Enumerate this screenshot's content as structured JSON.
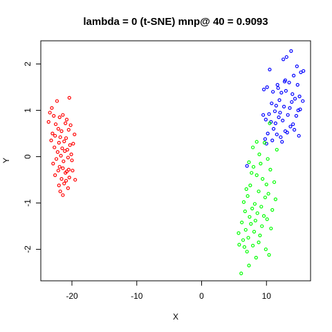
{
  "chart_data": {
    "type": "scatter",
    "title": "lambda = 0 (t-SNE) mnp@ 40 = 0.9093",
    "xlabel": "X",
    "ylabel": "Y",
    "xlim": [
      -24.8,
      16.8
    ],
    "ylim": [
      -2.68,
      2.5
    ],
    "xticks": [
      -20,
      -10,
      0,
      10
    ],
    "yticks": [
      -2,
      -1,
      0,
      1,
      2
    ],
    "xtick_labels": [
      "-20",
      "-10",
      "0",
      "10"
    ],
    "ytick_labels": [
      "-2",
      "-1",
      "0",
      "1",
      "2"
    ],
    "grid": false,
    "series": [
      {
        "color": "#ff0000",
        "x": [
          -23.1,
          -22.3,
          -20.4,
          -23.4,
          -22.8,
          -21.9,
          -21.4,
          -20.8,
          -23.6,
          -22.5,
          -21.0,
          -20.2,
          -22.1,
          -21.6,
          -23.0,
          -20.5,
          -19.6,
          -22.6,
          -21.8,
          -20.9,
          -23.2,
          -22.0,
          -21.2,
          -20.3,
          -19.8,
          -22.7,
          -21.5,
          -20.7,
          -22.2,
          -21.1,
          -20.1,
          -21.7,
          -20.6,
          -22.4,
          -21.3,
          -20.0,
          -22.9,
          -21.9,
          -20.5,
          -21.4,
          -22.1,
          -20.8,
          -19.9,
          -21.0,
          -22.6,
          -20.4,
          -21.6,
          -19.5,
          -20.9,
          -21.2,
          -22.0,
          -20.6,
          -21.8,
          -21.4
        ],
        "y": [
          1.05,
          1.2,
          1.27,
          0.95,
          0.88,
          0.85,
          0.9,
          0.8,
          0.75,
          0.7,
          0.72,
          0.68,
          0.6,
          0.55,
          0.5,
          0.58,
          0.48,
          0.45,
          0.42,
          0.4,
          0.35,
          0.3,
          0.33,
          0.25,
          0.28,
          0.2,
          0.18,
          0.15,
          0.1,
          0.12,
          0.05,
          0.02,
          -0.02,
          -0.05,
          -0.1,
          -0.08,
          -0.15,
          -0.22,
          -0.28,
          -0.25,
          -0.3,
          -0.32,
          -0.3,
          -0.35,
          -0.4,
          -0.45,
          -0.48,
          -0.5,
          -0.52,
          -0.58,
          -0.62,
          -0.68,
          -0.75,
          -0.83
        ]
      },
      {
        "color": "#0000ff",
        "x": [
          13.8,
          13.1,
          12.6,
          14.7,
          10.5,
          15.3,
          15.7,
          14.2,
          12.9,
          13.5,
          11.7,
          10.1,
          9.6,
          11.0,
          12.3,
          13.0,
          14.0,
          15.1,
          14.4,
          15.6,
          12.0,
          10.8,
          11.5,
          12.7,
          13.6,
          14.9,
          15.2,
          11.3,
          10.4,
          12.1,
          13.3,
          14.6,
          11.9,
          9.9,
          10.7,
          12.5,
          14.1,
          13.7,
          11.1,
          12.9,
          10.2,
          11.6,
          15.0,
          13.2,
          12.2,
          9.8,
          10.9,
          12.4,
          14.8,
          13.9,
          11.4,
          10.0,
          7.0,
          9.5,
          11.8,
          12.8,
          14.3
        ],
        "y": [
          2.28,
          2.15,
          2.1,
          1.95,
          1.88,
          1.82,
          1.85,
          1.75,
          1.65,
          1.6,
          1.55,
          1.5,
          1.45,
          1.4,
          1.38,
          1.42,
          1.35,
          1.3,
          1.25,
          1.2,
          1.22,
          1.15,
          1.1,
          1.08,
          1.05,
          1.0,
          1.02,
          0.98,
          0.92,
          0.95,
          0.9,
          0.88,
          0.85,
          0.8,
          0.75,
          0.78,
          0.7,
          0.65,
          0.6,
          0.55,
          0.5,
          0.48,
          0.45,
          0.52,
          0.42,
          0.38,
          0.35,
          0.32,
          1.55,
          1.18,
          0.72,
          0.28,
          -0.2,
          0.9,
          1.48,
          1.62,
          0.58
        ]
      },
      {
        "color": "#00ff00",
        "x": [
          10.5,
          8.5,
          9.7,
          7.9,
          11.6,
          8.9,
          10.2,
          7.3,
          9.1,
          8.0,
          10.6,
          7.7,
          8.5,
          9.4,
          11.2,
          10.0,
          7.5,
          6.9,
          8.8,
          10.3,
          7.1,
          9.8,
          11.4,
          6.5,
          8.2,
          9.2,
          7.8,
          10.9,
          6.7,
          8.6,
          9.6,
          7.4,
          10.1,
          8.3,
          6.2,
          7.6,
          9.3,
          10.7,
          6.8,
          8.1,
          5.7,
          9.0,
          7.2,
          6.4,
          8.8,
          5.8,
          7.9,
          6.6,
          9.9,
          7.0,
          10.4,
          8.4,
          7.3,
          6.1
        ],
        "y": [
          0.72,
          0.32,
          0.3,
          0.2,
          0.15,
          0.05,
          -0.05,
          -0.12,
          -0.15,
          -0.22,
          -0.28,
          -0.35,
          -0.4,
          -0.48,
          -0.55,
          -0.6,
          -0.62,
          -0.7,
          -0.75,
          -0.8,
          -0.85,
          -0.88,
          -0.92,
          -0.98,
          -1.02,
          -1.08,
          -1.12,
          -1.15,
          -1.18,
          -1.22,
          -1.28,
          -1.3,
          -1.35,
          -1.38,
          -1.42,
          -1.45,
          -1.5,
          -1.55,
          -1.58,
          -1.62,
          -1.65,
          -1.7,
          -1.75,
          -1.8,
          -1.85,
          -1.9,
          -1.92,
          -1.95,
          -2.0,
          -2.05,
          -2.12,
          -2.18,
          -2.35,
          -2.52
        ]
      }
    ]
  }
}
